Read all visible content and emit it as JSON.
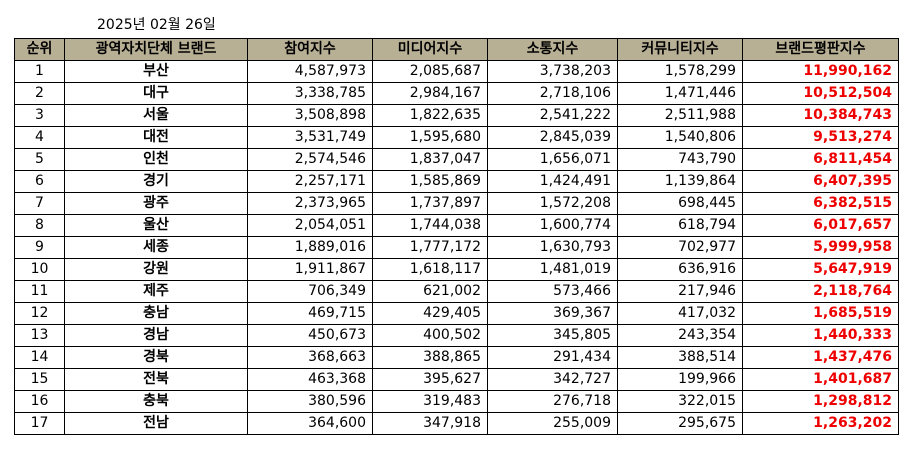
{
  "date": "2025년 02월 26일",
  "table": {
    "headers": [
      "순위",
      "광역자치단체 브랜드",
      "참여지수",
      "미디어지수",
      "소통지수",
      "커뮤니티지수",
      "브랜드평판지수"
    ],
    "rows": [
      [
        "1",
        "부산",
        "4,587,973",
        "2,085,687",
        "3,738,203",
        "1,578,299",
        "11,990,162"
      ],
      [
        "2",
        "대구",
        "3,338,785",
        "2,984,167",
        "2,718,106",
        "1,471,446",
        "10,512,504"
      ],
      [
        "3",
        "서울",
        "3,508,898",
        "1,822,635",
        "2,541,222",
        "2,511,988",
        "10,384,743"
      ],
      [
        "4",
        "대전",
        "3,531,749",
        "1,595,680",
        "2,845,039",
        "1,540,806",
        "9,513,274"
      ],
      [
        "5",
        "인천",
        "2,574,546",
        "1,837,047",
        "1,656,071",
        "743,790",
        "6,811,454"
      ],
      [
        "6",
        "경기",
        "2,257,171",
        "1,585,869",
        "1,424,491",
        "1,139,864",
        "6,407,395"
      ],
      [
        "7",
        "광주",
        "2,373,965",
        "1,737,897",
        "1,572,208",
        "698,445",
        "6,382,515"
      ],
      [
        "8",
        "울산",
        "2,054,051",
        "1,744,038",
        "1,600,774",
        "618,794",
        "6,017,657"
      ],
      [
        "9",
        "세종",
        "1,889,016",
        "1,777,172",
        "1,630,793",
        "702,977",
        "5,999,958"
      ],
      [
        "10",
        "강원",
        "1,911,867",
        "1,618,117",
        "1,481,019",
        "636,916",
        "5,647,919"
      ],
      [
        "11",
        "제주",
        "706,349",
        "621,002",
        "573,466",
        "217,946",
        "2,118,764"
      ],
      [
        "12",
        "충남",
        "469,715",
        "429,405",
        "369,367",
        "417,032",
        "1,685,519"
      ],
      [
        "13",
        "경남",
        "450,673",
        "400,502",
        "345,805",
        "243,354",
        "1,440,333"
      ],
      [
        "14",
        "경북",
        "368,663",
        "388,865",
        "291,434",
        "388,514",
        "1,437,476"
      ],
      [
        "15",
        "전북",
        "463,368",
        "395,627",
        "342,727",
        "199,966",
        "1,401,687"
      ],
      [
        "16",
        "충북",
        "380,596",
        "319,483",
        "276,718",
        "322,015",
        "1,298,812"
      ],
      [
        "17",
        "전남",
        "364,600",
        "347,918",
        "255,009",
        "295,675",
        "1,263,202"
      ]
    ]
  }
}
